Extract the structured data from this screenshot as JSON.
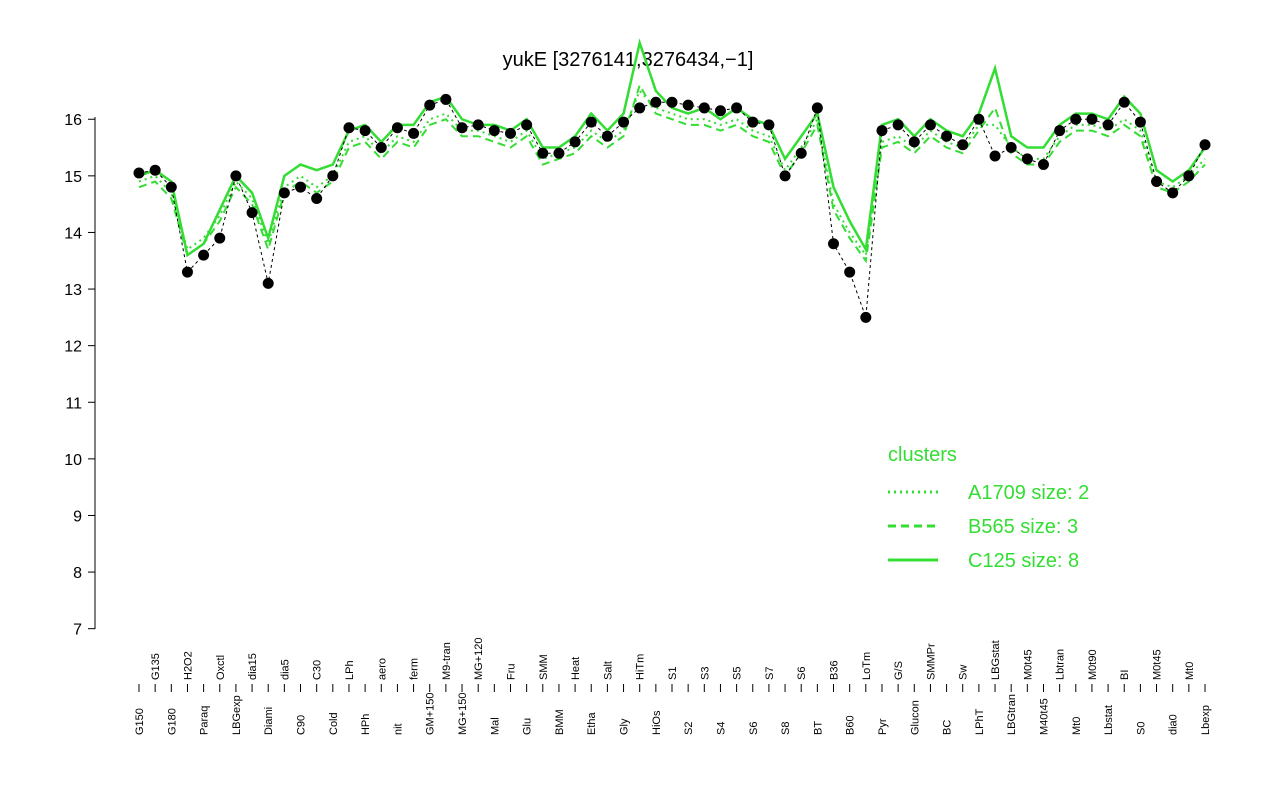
{
  "chart_data": {
    "type": "line",
    "title": "yukE [3276141,3276434,−1]",
    "categories": [
      "G150",
      "G135",
      "G180",
      "H2O2",
      "Paraq",
      "Oxctl",
      "LBGexp",
      "dia15",
      "Diami",
      "dia5",
      "C90",
      "C30",
      "Cold",
      "LPh",
      "HPh",
      "aero",
      "nit",
      "ferm",
      "GM+150",
      "M9-tran",
      "MG+150",
      "MG+120",
      "Mal",
      "Fru",
      "Glu",
      "SMM",
      "BMM",
      "Heat",
      "Etha",
      "Salt",
      "Gly",
      "HiTm",
      "HiOs",
      "S1",
      "S2",
      "S3",
      "S4",
      "S5",
      "S6",
      "S7",
      "S8",
      "S6",
      "BT",
      "B36",
      "B60",
      "LoTm",
      "Pyr",
      "G/S",
      "Glucon",
      "SMMPr",
      "BC",
      "Sw",
      "LPhT",
      "LBGstat",
      "LBGtran",
      "M0t45",
      "M40t45",
      "Lbtran",
      "Mt0",
      "M0t90",
      "Lbstat",
      "BI",
      "S0",
      "M0t45",
      "dia0",
      "Mt0",
      "Lbexp"
    ],
    "points": {
      "color": "#000000",
      "values": [
        15.05,
        15.1,
        14.8,
        13.3,
        13.6,
        13.9,
        15.0,
        14.35,
        13.1,
        14.7,
        14.8,
        14.6,
        15.0,
        15.85,
        15.8,
        15.5,
        15.85,
        15.75,
        16.25,
        16.35,
        15.85,
        15.9,
        15.8,
        15.75,
        15.9,
        15.4,
        15.4,
        15.6,
        15.95,
        15.7,
        15.95,
        16.2,
        16.3,
        16.3,
        16.25,
        16.2,
        16.15,
        16.2,
        15.95,
        15.9,
        15.0,
        15.4,
        16.2,
        13.8,
        13.3,
        12.5,
        15.8,
        15.9,
        15.6,
        15.9,
        15.7,
        15.55,
        16.0,
        15.35,
        15.5,
        15.3,
        15.2,
        15.8,
        16.0,
        16.0,
        15.9,
        16.3,
        15.95,
        14.9,
        14.7,
        15.0,
        15.55
      ]
    },
    "series": [
      {
        "name": "A1709 size: 2",
        "color": "#33dd33",
        "style": "dotted",
        "values": [
          14.9,
          15.0,
          14.7,
          13.7,
          13.9,
          14.3,
          14.9,
          14.6,
          13.8,
          14.8,
          15.0,
          14.8,
          15.0,
          15.6,
          15.7,
          15.4,
          15.7,
          15.6,
          16.0,
          16.1,
          15.8,
          15.8,
          15.7,
          15.6,
          15.8,
          15.3,
          15.4,
          15.5,
          15.8,
          15.6,
          15.8,
          16.5,
          16.2,
          16.1,
          16.0,
          16.0,
          15.9,
          16.0,
          15.8,
          15.7,
          15.1,
          15.5,
          16.0,
          14.5,
          14.0,
          13.6,
          15.6,
          15.7,
          15.5,
          15.8,
          15.6,
          15.5,
          15.9,
          15.9,
          15.5,
          15.3,
          15.3,
          15.7,
          15.9,
          15.9,
          15.8,
          16.0,
          15.8,
          14.9,
          14.8,
          15.0,
          15.3
        ]
      },
      {
        "name": "B565 size: 3",
        "color": "#33dd33",
        "style": "dashed",
        "values": [
          14.8,
          14.9,
          14.6,
          13.6,
          13.8,
          14.2,
          14.8,
          14.5,
          13.7,
          14.7,
          14.9,
          14.7,
          14.9,
          15.5,
          15.6,
          15.3,
          15.6,
          15.5,
          15.9,
          16.0,
          15.7,
          15.7,
          15.6,
          15.5,
          15.7,
          15.2,
          15.3,
          15.4,
          15.7,
          15.5,
          15.7,
          16.6,
          16.1,
          16.0,
          15.9,
          15.9,
          15.8,
          15.9,
          15.7,
          15.6,
          15.0,
          15.4,
          15.9,
          14.4,
          13.9,
          13.5,
          15.5,
          15.6,
          15.4,
          15.7,
          15.5,
          15.4,
          15.8,
          16.2,
          15.4,
          15.2,
          15.2,
          15.6,
          15.8,
          15.8,
          15.7,
          15.9,
          15.7,
          14.8,
          14.7,
          14.9,
          15.2
        ]
      },
      {
        "name": "C125 size: 8",
        "color": "#33dd33",
        "style": "solid",
        "values": [
          15.0,
          15.1,
          14.9,
          13.6,
          13.8,
          14.4,
          15.0,
          14.7,
          13.9,
          15.0,
          15.2,
          15.1,
          15.2,
          15.8,
          15.9,
          15.6,
          15.9,
          15.9,
          16.3,
          16.4,
          16.0,
          15.9,
          15.9,
          15.8,
          16.0,
          15.5,
          15.5,
          15.7,
          16.1,
          15.8,
          16.1,
          17.35,
          16.5,
          16.2,
          16.1,
          16.2,
          16.0,
          16.2,
          16.0,
          15.9,
          15.3,
          15.7,
          16.1,
          14.8,
          14.2,
          13.7,
          15.9,
          16.0,
          15.7,
          16.0,
          15.8,
          15.7,
          16.1,
          16.9,
          15.7,
          15.5,
          15.5,
          15.9,
          16.1,
          16.1,
          16.0,
          16.4,
          16.1,
          15.1,
          14.9,
          15.1,
          15.5
        ]
      }
    ],
    "ylim": [
      6.8,
      17.4
    ],
    "yticks": [
      7,
      8,
      9,
      10,
      11,
      12,
      13,
      14,
      15,
      16
    ],
    "legend_title": "clusters",
    "legend_position": "right"
  }
}
